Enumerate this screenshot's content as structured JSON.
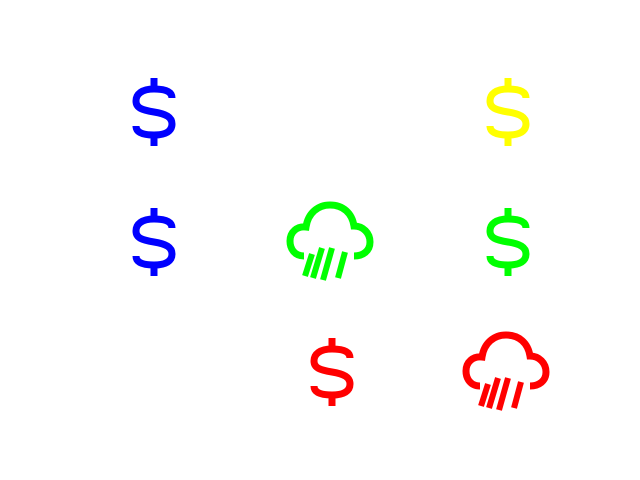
{
  "icons": [
    {
      "name": "dollar-sign-icon",
      "color": "#0000ff"
    },
    {
      "name": "dollar-sign-icon",
      "color": "#ffff00"
    },
    {
      "name": "dollar-sign-icon",
      "color": "#0000ff"
    },
    {
      "name": "cloud-rain-icon",
      "color": "#00ff00"
    },
    {
      "name": "dollar-sign-icon",
      "color": "#00ff00"
    },
    {
      "name": "dollar-sign-icon",
      "color": "#ff0000"
    },
    {
      "name": "cloud-rain-icon",
      "color": "#ff0000"
    }
  ]
}
